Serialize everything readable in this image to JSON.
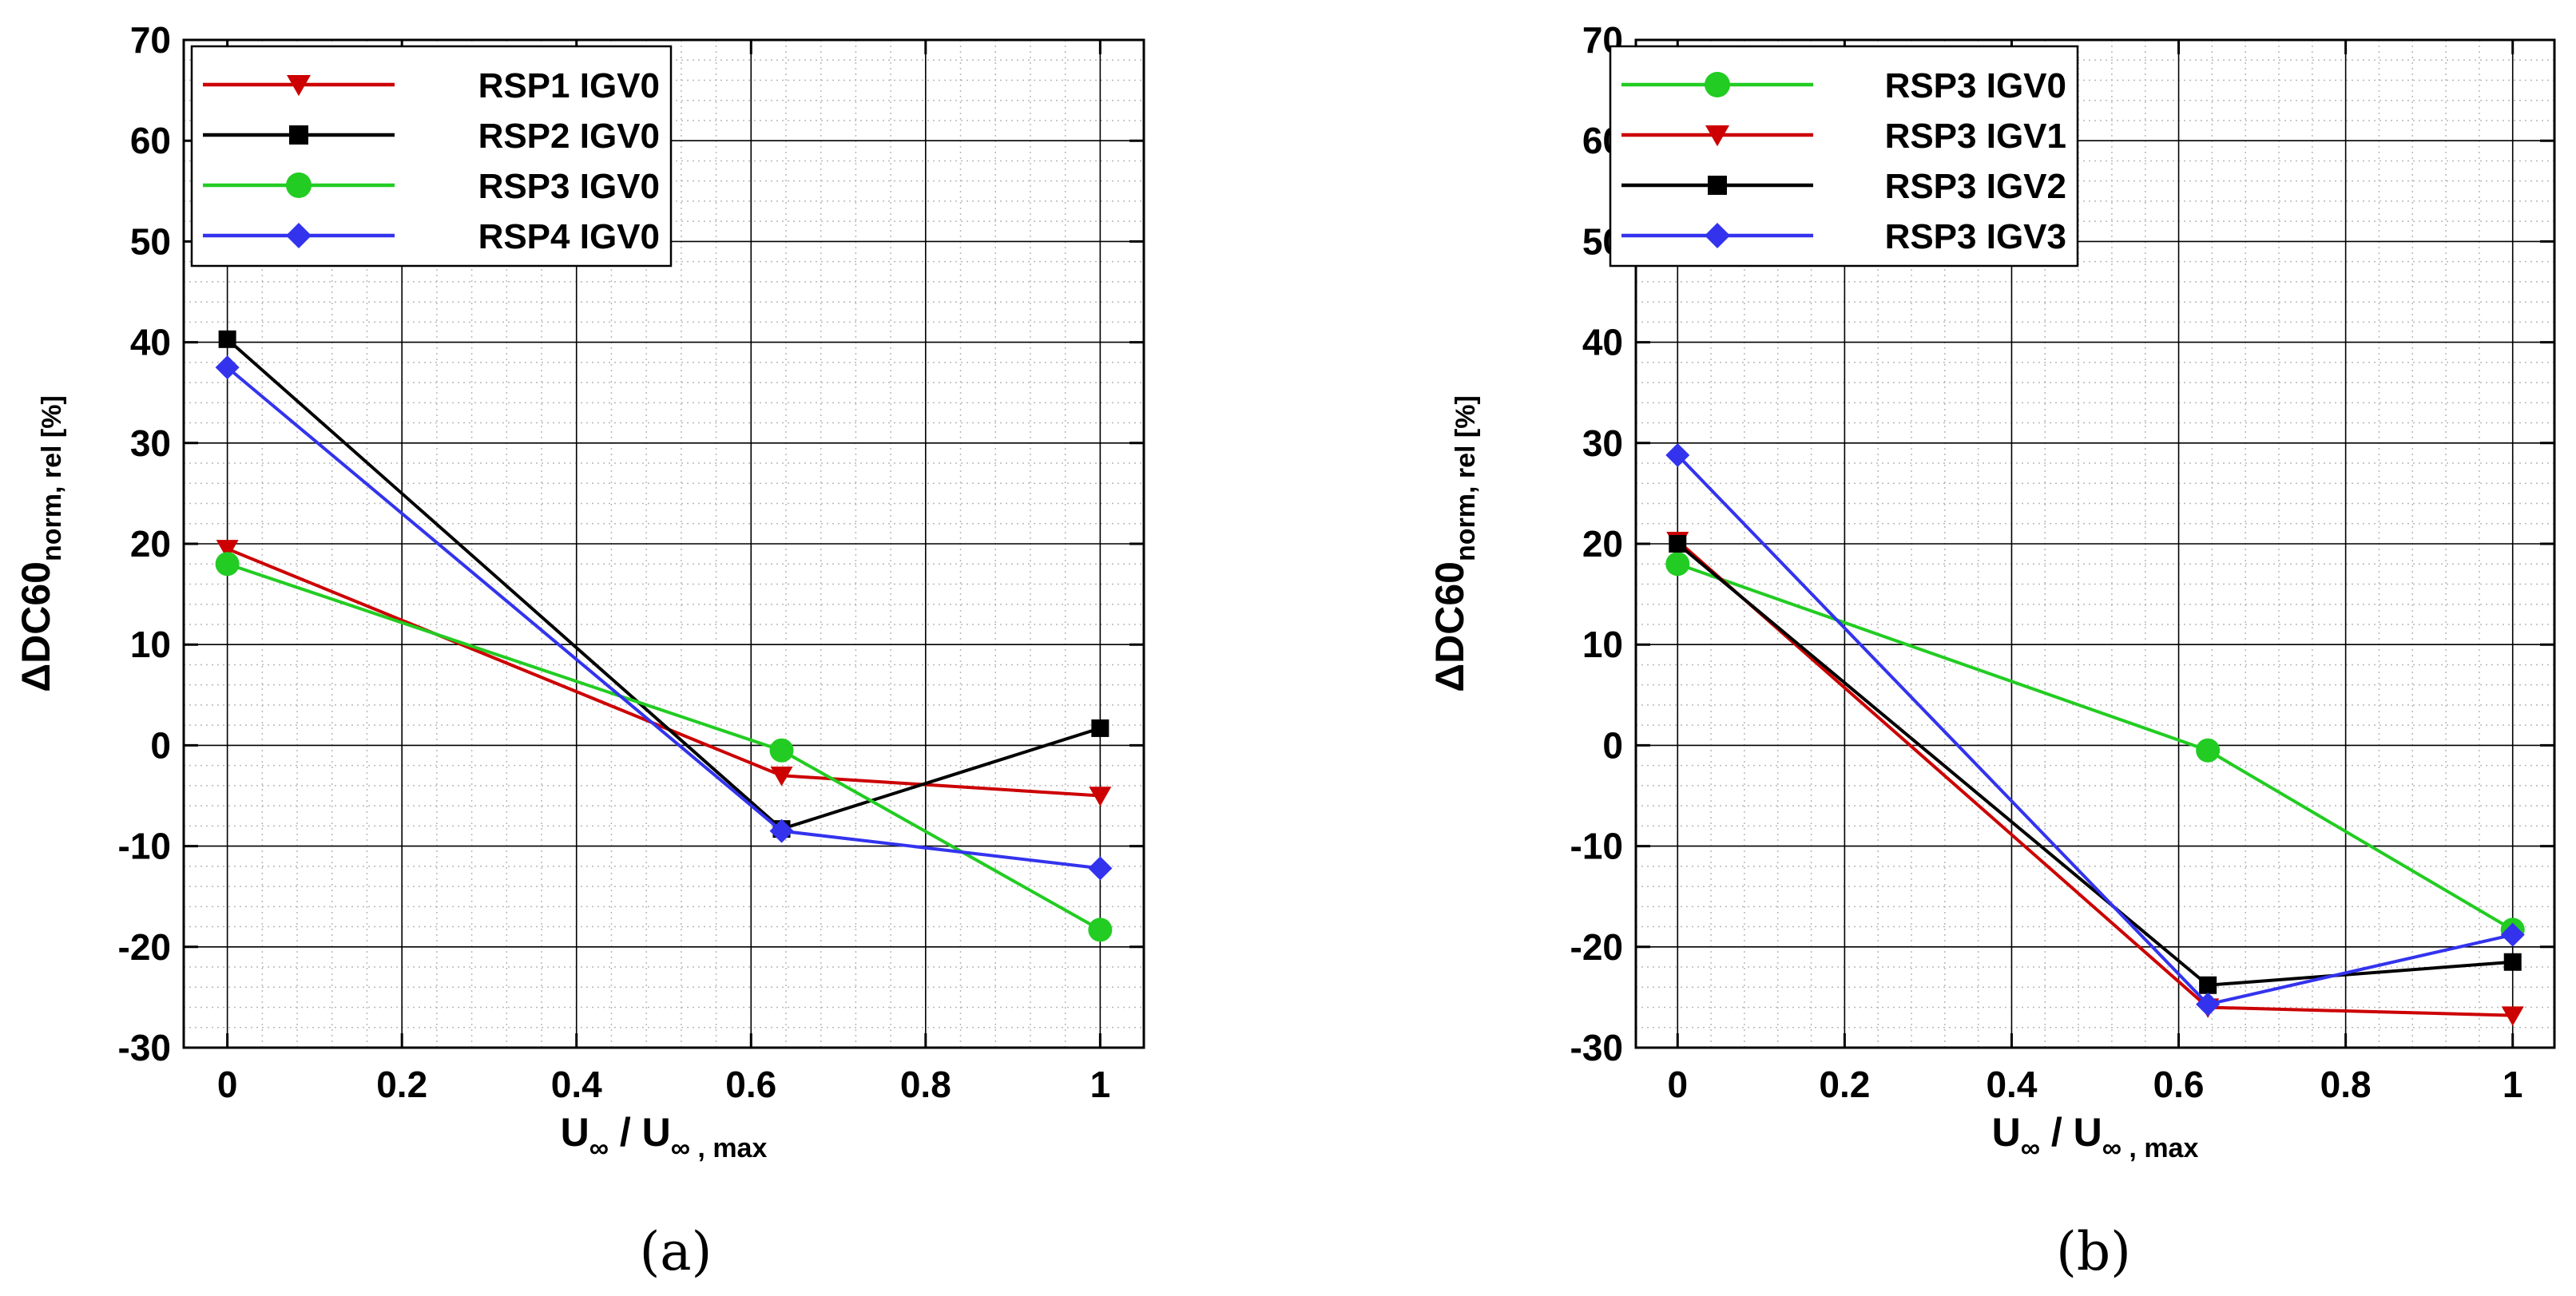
{
  "figure": {
    "panels": [
      {
        "caption": "(a)",
        "xlabel": {
          "main": "U",
          "sub1": "∞",
          "mid": " / U",
          "sub2": "∞ , max"
        },
        "ylabel": {
          "main": "ΔDC60",
          "sub": "norm, rel [%]"
        }
      },
      {
        "caption": "(b)",
        "xlabel": {
          "main": "U",
          "sub1": "∞",
          "mid": " / U",
          "sub2": "∞ , max"
        },
        "ylabel": {
          "main": "ΔDC60",
          "sub": "norm, rel [%]"
        }
      }
    ]
  },
  "chart_data": [
    {
      "type": "line",
      "xlim": [
        -0.05,
        1.05
      ],
      "ylim": [
        -30,
        70
      ],
      "xticks": [
        "0",
        "0.2",
        "0.4",
        "0.6",
        "0.8",
        "1"
      ],
      "xtick_values": [
        0,
        0.2,
        0.4,
        0.6,
        0.8,
        1
      ],
      "yticks": [
        "-30",
        "-20",
        "-10",
        "0",
        "10",
        "20",
        "30",
        "40",
        "50",
        "60",
        "70"
      ],
      "ytick_values": [
        -30,
        -20,
        -10,
        0,
        10,
        20,
        30,
        40,
        50,
        60,
        70
      ],
      "grid": true,
      "legend_position": "top-left",
      "x": [
        0,
        0.635,
        1
      ],
      "series": [
        {
          "name": "RSP1 IGV0",
          "values": [
            19.5,
            -3,
            -5
          ],
          "color": "#cc0000",
          "marker": "triangle-down"
        },
        {
          "name": "RSP2 IGV0",
          "values": [
            40.3,
            -8.3,
            1.7
          ],
          "color": "#000000",
          "marker": "square"
        },
        {
          "name": "RSP3 IGV0",
          "values": [
            18,
            -0.5,
            -18.3
          ],
          "color": "#22cc22",
          "marker": "circle"
        },
        {
          "name": "RSP4 IGV0",
          "values": [
            37.5,
            -8.5,
            -12.2
          ],
          "color": "#3333ee",
          "marker": "diamond"
        }
      ]
    },
    {
      "type": "line",
      "xlim": [
        -0.05,
        1.05
      ],
      "ylim": [
        -30,
        70
      ],
      "xticks": [
        "0",
        "0.2",
        "0.4",
        "0.6",
        "0.8",
        "1"
      ],
      "xtick_values": [
        0,
        0.2,
        0.4,
        0.6,
        0.8,
        1
      ],
      "yticks": [
        "-30",
        "-20",
        "-10",
        "0",
        "10",
        "20",
        "30",
        "40",
        "50",
        "60",
        "70"
      ],
      "ytick_values": [
        -30,
        -20,
        -10,
        0,
        10,
        20,
        30,
        40,
        50,
        60,
        70
      ],
      "grid": true,
      "legend_position": "top-left",
      "x": [
        0,
        0.635,
        1
      ],
      "series": [
        {
          "name": "RSP3 IGV0",
          "values": [
            18,
            -0.5,
            -18.3
          ],
          "color": "#22cc22",
          "marker": "circle"
        },
        {
          "name": "RSP3 IGV1",
          "values": [
            20.3,
            -26,
            -26.8
          ],
          "color": "#cc0000",
          "marker": "triangle-down"
        },
        {
          "name": "RSP3 IGV2",
          "values": [
            20,
            -23.8,
            -21.5
          ],
          "color": "#000000",
          "marker": "square"
        },
        {
          "name": "RSP3 IGV3",
          "values": [
            28.8,
            -25.7,
            -18.8
          ],
          "color": "#3333ee",
          "marker": "diamond"
        }
      ]
    }
  ]
}
